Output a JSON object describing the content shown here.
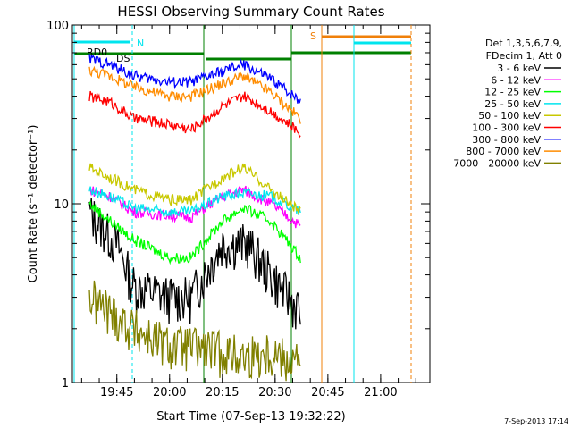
{
  "chart_data": {
    "type": "line",
    "title": "HESSI Observing Summary Count Rates",
    "xlabel": "Start Time (07-Sep-13 19:32:22)",
    "ylabel": "Count Rate (s⁻¹ detector⁻¹)",
    "yscale": "log",
    "ylim": [
      1,
      100
    ],
    "xlim": [
      "19:32:22",
      "21:14:00"
    ],
    "x_ticks": [
      "19:45",
      "20:00",
      "20:15",
      "20:30",
      "20:45",
      "21:00"
    ],
    "y_ticks": [
      "1",
      "10",
      "100"
    ],
    "grid": false,
    "legend_position": "right",
    "legend_header": [
      "Det 1,3,5,6,7,9,",
      "FDecim 1, Att 0"
    ],
    "footer": "7-Sep-2013 17:14",
    "flags": [
      {
        "label": "RD0",
        "color": "#00e5ee"
      },
      {
        "label": "N",
        "color": "#00e5ee"
      },
      {
        "label": "DS",
        "color": "#008000"
      },
      {
        "label": "S",
        "color": "#f0800a"
      }
    ],
    "series": [
      {
        "name": "3 - 6 keV",
        "color": "#000000",
        "values": [
          [
            19.62,
            9
          ],
          [
            19.75,
            6
          ],
          [
            19.83,
            3.5
          ],
          [
            20.0,
            3
          ],
          [
            20.1,
            3
          ],
          [
            20.25,
            6
          ],
          [
            20.37,
            6
          ],
          [
            20.48,
            4
          ],
          [
            20.62,
            2.5
          ]
        ]
      },
      {
        "name": "6 - 12 keV",
        "color": "#ff00ff",
        "values": [
          [
            19.62,
            12
          ],
          [
            19.72,
            11
          ],
          [
            19.83,
            9
          ],
          [
            20.0,
            8.6
          ],
          [
            20.1,
            8.4
          ],
          [
            20.25,
            11
          ],
          [
            20.35,
            12
          ],
          [
            20.48,
            10
          ],
          [
            20.62,
            7.5
          ]
        ]
      },
      {
        "name": "12 - 25 keV",
        "color": "#00ff00",
        "values": [
          [
            19.62,
            10
          ],
          [
            19.72,
            8
          ],
          [
            19.83,
            6.3
          ],
          [
            20.0,
            5
          ],
          [
            20.1,
            5
          ],
          [
            20.25,
            8
          ],
          [
            20.35,
            9.5
          ],
          [
            20.48,
            8
          ],
          [
            20.62,
            5
          ]
        ]
      },
      {
        "name": "25 - 50 keV",
        "color": "#00e5ee",
        "values": [
          [
            19.62,
            12
          ],
          [
            19.72,
            11
          ],
          [
            19.83,
            9.5
          ],
          [
            20.0,
            9
          ],
          [
            20.1,
            9
          ],
          [
            20.25,
            11
          ],
          [
            20.35,
            11.5
          ],
          [
            20.48,
            11
          ],
          [
            20.62,
            9
          ]
        ]
      },
      {
        "name": "50 - 100 keV",
        "color": "#c8c800",
        "values": [
          [
            19.62,
            16
          ],
          [
            19.72,
            14
          ],
          [
            19.83,
            12
          ],
          [
            20.0,
            10.5
          ],
          [
            20.1,
            10.5
          ],
          [
            20.25,
            14
          ],
          [
            20.35,
            16
          ],
          [
            20.48,
            12
          ],
          [
            20.62,
            9
          ]
        ]
      },
      {
        "name": "100 - 300 keV",
        "color": "#ff0000",
        "values": [
          [
            19.62,
            40
          ],
          [
            19.72,
            37
          ],
          [
            19.83,
            30
          ],
          [
            20.0,
            28
          ],
          [
            20.1,
            26
          ],
          [
            20.25,
            35
          ],
          [
            20.35,
            40
          ],
          [
            20.48,
            33
          ],
          [
            20.62,
            25
          ]
        ]
      },
      {
        "name": "300 - 800 keV",
        "color": "#0000ff",
        "values": [
          [
            19.62,
            65
          ],
          [
            19.72,
            60
          ],
          [
            19.83,
            52
          ],
          [
            20.0,
            48
          ],
          [
            20.1,
            48
          ],
          [
            20.25,
            55
          ],
          [
            20.35,
            60
          ],
          [
            20.48,
            50
          ],
          [
            20.62,
            38
          ]
        ]
      },
      {
        "name": "800 - 7000 keV",
        "color": "#ff8c00",
        "values": [
          [
            19.62,
            56
          ],
          [
            19.72,
            52
          ],
          [
            19.83,
            45
          ],
          [
            20.0,
            40
          ],
          [
            20.1,
            40
          ],
          [
            20.25,
            47
          ],
          [
            20.35,
            52
          ],
          [
            20.48,
            42
          ],
          [
            20.62,
            30
          ]
        ]
      },
      {
        "name": "7000 - 20000 keV",
        "color": "#808000",
        "values": [
          [
            19.62,
            3
          ],
          [
            19.72,
            2.5
          ],
          [
            19.83,
            2.0
          ],
          [
            20.0,
            1.6
          ],
          [
            20.1,
            1.6
          ],
          [
            20.25,
            1.5
          ],
          [
            20.35,
            1.4
          ],
          [
            20.48,
            1.5
          ],
          [
            20.62,
            1.3
          ]
        ]
      }
    ]
  }
}
